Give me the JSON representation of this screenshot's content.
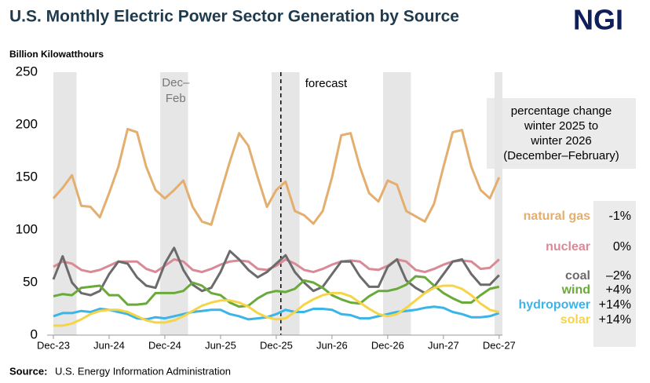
{
  "chart_data": {
    "type": "line",
    "title": "U.S. Monthly Electric Power Sector Generation by Source",
    "logo": "NGI",
    "y_label": "Billion Kilowatthours",
    "source_label": "Source:",
    "source": "U.S. Energy Information Administration",
    "annotations": {
      "winter": [
        "Dec–",
        "Feb"
      ],
      "forecast": "forecast"
    },
    "panel_title": [
      "percentage change",
      "winter 2025 to",
      "winter 2026",
      "(December–February)"
    ],
    "categories": [
      "Dec-23",
      null,
      null,
      null,
      null,
      null,
      "Jun-24",
      null,
      null,
      null,
      null,
      null,
      "Dec-24",
      null,
      null,
      null,
      null,
      null,
      "Jun-25",
      null,
      null,
      null,
      null,
      null,
      "Dec-25",
      null,
      null,
      null,
      null,
      null,
      "Jun-26",
      null,
      null,
      null,
      null,
      null,
      "Dec-26",
      null,
      null,
      null,
      null,
      null,
      "Jun-27",
      null,
      null,
      null,
      null,
      null,
      "Dec-27"
    ],
    "ylim": [
      0,
      250
    ],
    "yticks": [
      0,
      50,
      100,
      150,
      200,
      250
    ],
    "series": [
      {
        "name": "natural gas",
        "change": "-1%",
        "color": "#e3ae6e",
        "values": [
          130,
          140,
          152,
          123,
          122,
          112,
          135,
          160,
          196,
          193,
          160,
          138,
          130,
          138,
          147,
          122,
          108,
          105,
          135,
          165,
          192,
          180,
          150,
          122,
          138,
          146,
          118,
          114,
          106,
          118,
          150,
          190,
          192,
          160,
          135,
          127,
          147,
          143,
          118,
          113,
          108,
          125,
          160,
          193,
          195,
          160,
          138,
          130,
          150
        ]
      },
      {
        "name": "nuclear",
        "change": "0%",
        "color": "#d98a96",
        "values": [
          65,
          70,
          68,
          62,
          60,
          62,
          66,
          70,
          70,
          70,
          63,
          60,
          66,
          72,
          70,
          62,
          60,
          63,
          67,
          70,
          71,
          70,
          63,
          62,
          66,
          72,
          68,
          62,
          60,
          63,
          67,
          70,
          71,
          70,
          63,
          62,
          66,
          72,
          70,
          62,
          60,
          63,
          67,
          70,
          71,
          70,
          63,
          64,
          72
        ]
      },
      {
        "name": "coal",
        "change": "–2%",
        "color": "#6b6b6b",
        "values": [
          53,
          75,
          50,
          40,
          38,
          42,
          58,
          70,
          68,
          55,
          47,
          45,
          68,
          83,
          62,
          48,
          42,
          45,
          60,
          80,
          72,
          62,
          55,
          60,
          68,
          76,
          60,
          50,
          42,
          46,
          58,
          70,
          70,
          56,
          46,
          46,
          65,
          72,
          52,
          45,
          40,
          46,
          58,
          70,
          72,
          58,
          48,
          48,
          57
        ]
      },
      {
        "name": "wind",
        "change": "+4%",
        "color": "#6aaa3a",
        "values": [
          37,
          39,
          38,
          45,
          46,
          47,
          38,
          38,
          29,
          29,
          30,
          40,
          40,
          40,
          42,
          50,
          47,
          40,
          38,
          31,
          27,
          28,
          35,
          40,
          42,
          41,
          44,
          52,
          50,
          45,
          38,
          34,
          31,
          30,
          37,
          42,
          42,
          44,
          48,
          56,
          55,
          47,
          40,
          35,
          31,
          31,
          38,
          44,
          46
        ]
      },
      {
        "name": "hydropower",
        "change": "+14%",
        "color": "#3bb4e8",
        "values": [
          18,
          21,
          21,
          23,
          22,
          25,
          24,
          22,
          20,
          16,
          15,
          17,
          16,
          18,
          20,
          22,
          23,
          24,
          24,
          20,
          18,
          15,
          16,
          17,
          20,
          24,
          22,
          22,
          25,
          25,
          24,
          20,
          19,
          16,
          16,
          18,
          20,
          22,
          23,
          24,
          26,
          27,
          26,
          22,
          20,
          17,
          17,
          18,
          21
        ]
      },
      {
        "name": "solar",
        "change": "+14%",
        "color": "#f5d547",
        "values": [
          9,
          9,
          11,
          15,
          20,
          23,
          24,
          24,
          22,
          18,
          14,
          12,
          12,
          14,
          18,
          23,
          28,
          31,
          33,
          33,
          31,
          27,
          21,
          17,
          15,
          16,
          22,
          29,
          34,
          38,
          40,
          40,
          37,
          31,
          25,
          20,
          18,
          20,
          26,
          33,
          40,
          45,
          47,
          47,
          44,
          38,
          30,
          24,
          22
        ]
      }
    ]
  }
}
